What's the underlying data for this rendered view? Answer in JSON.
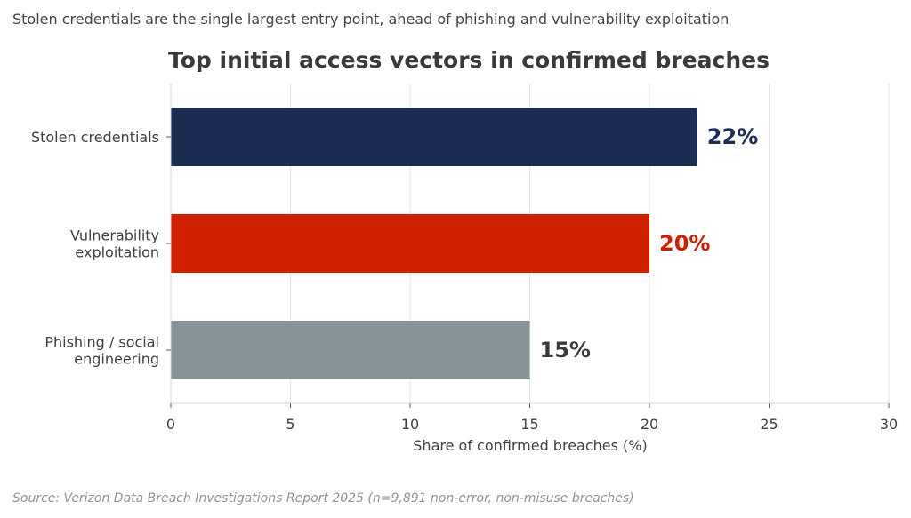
{
  "subtitle": "Stolen credentials are the single largest entry point, ahead of phishing and vulnerability exploitation",
  "source": "Source: Verizon Data Breach Investigations Report 2025 (n=9,891 non-error, non-misuse breaches)",
  "chart_data": {
    "type": "bar",
    "orientation": "horizontal",
    "title": "Top initial access vectors in confirmed breaches",
    "xlabel": "Share of confirmed breaches (%)",
    "ylabel": "",
    "xlim": [
      0,
      30
    ],
    "xticks": [
      0,
      5,
      10,
      15,
      20,
      25,
      30
    ],
    "grid": "vertical",
    "categories": [
      [
        "Stolen credentials"
      ],
      [
        "Vulnerability",
        "exploitation"
      ],
      [
        "Phishing / social",
        "engineering"
      ]
    ],
    "values": [
      22,
      20,
      15
    ],
    "data_labels": [
      "22%",
      "20%",
      "15%"
    ],
    "colors": [
      "#1b2d52",
      "#d12000",
      "#859296"
    ]
  }
}
